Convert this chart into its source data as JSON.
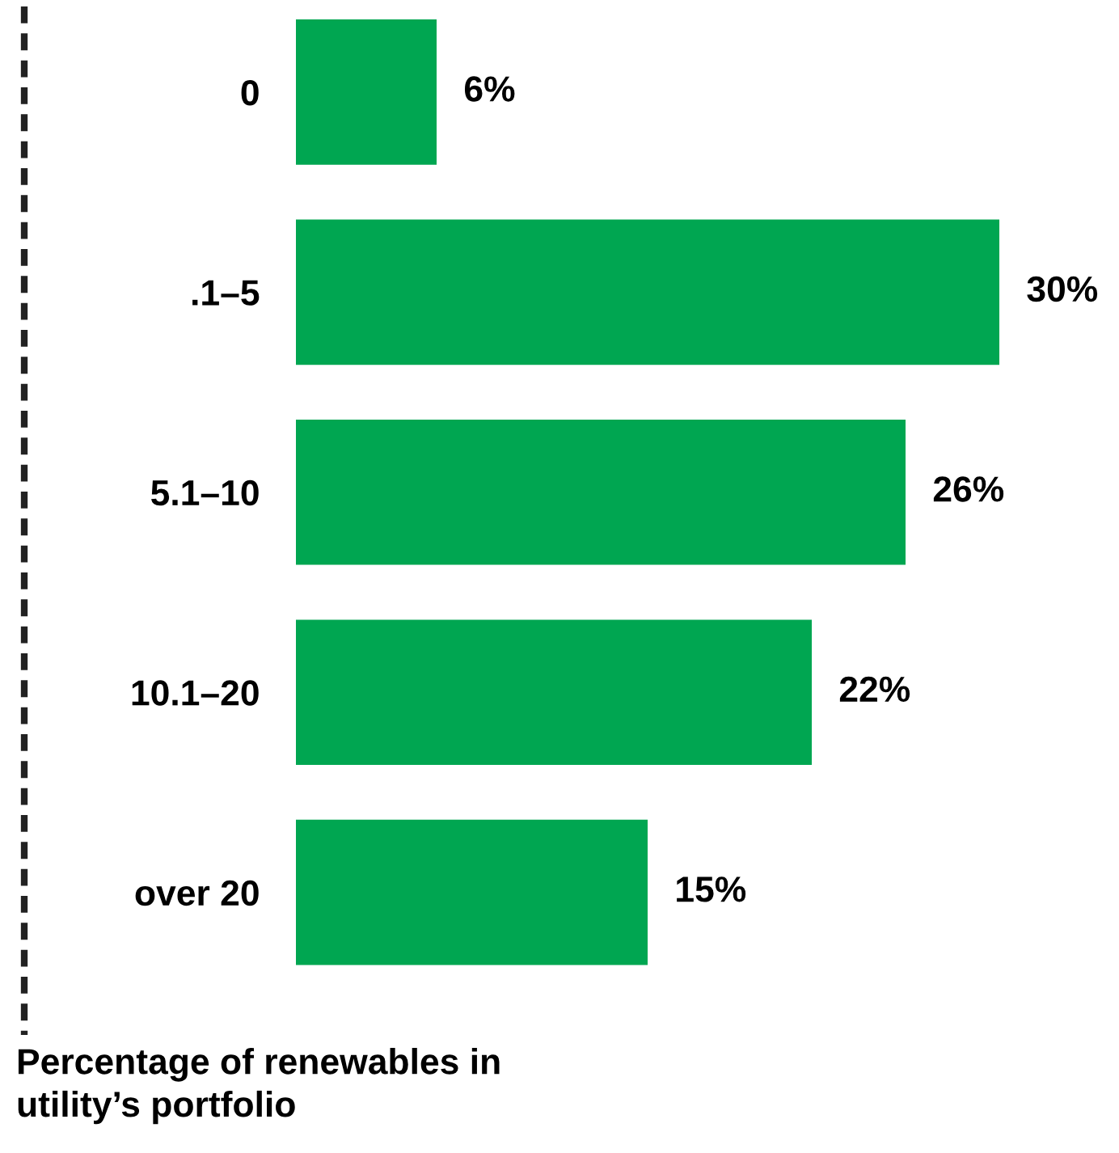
{
  "chart_data": {
    "type": "bar",
    "orientation": "horizontal",
    "ylabel": "Percentage of renewables in\nutility’s portfolio",
    "categories": [
      "0",
      ".1–5",
      "5.1–10",
      "10.1–20",
      "over 20"
    ],
    "values": [
      6,
      30,
      26,
      22,
      15
    ],
    "value_labels": [
      "6%",
      "30%",
      "26%",
      "22%",
      "15%"
    ],
    "color": "#00a651",
    "grid": false,
    "legend": false
  }
}
